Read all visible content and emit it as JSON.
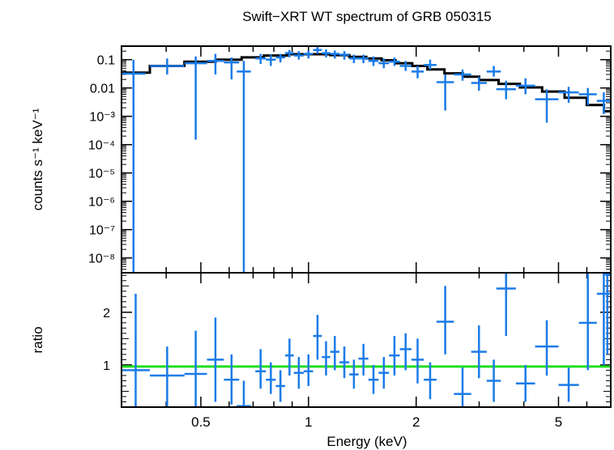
{
  "chart_data": [
    {
      "type": "scatter",
      "title": "Swift−XRT WT spectrum of GRB 050315",
      "xlabel": "Energy (keV)",
      "ylabel": "counts s⁻¹ keV⁻¹",
      "xscale": "log",
      "yscale": "log",
      "xlim": [
        0.3,
        7.0
      ],
      "ylim": [
        3e-09,
        0.3
      ],
      "x_ticks": [
        {
          "value": 0.5,
          "label": "0.5"
        },
        {
          "value": 1,
          "label": "1"
        },
        {
          "value": 2,
          "label": "2"
        },
        {
          "value": 5,
          "label": "5"
        }
      ],
      "y_ticks": [
        {
          "value": 0.1,
          "label": "0.1"
        },
        {
          "value": 0.01,
          "label": "0.01"
        },
        {
          "value": 0.001,
          "label": "10⁻³"
        },
        {
          "value": 0.0001,
          "label": "10⁻⁴"
        },
        {
          "value": 1e-05,
          "label": "10⁻⁵"
        },
        {
          "value": 1e-06,
          "label": "10⁻⁶"
        },
        {
          "value": 1e-07,
          "label": "10⁻⁷"
        },
        {
          "value": 1e-08,
          "label": "10⁻⁸"
        }
      ],
      "data_color": "#1a7be8",
      "model_color": "#000000",
      "points": [
        {
          "x0": 0.3,
          "x1": 0.35,
          "y": 0.032,
          "ylo": 3e-09,
          "yhi": 0.1
        },
        {
          "x0": 0.36,
          "x1": 0.45,
          "y": 0.06,
          "ylo": 0.03,
          "yhi": 0.11
        },
        {
          "x0": 0.45,
          "x1": 0.52,
          "y": 0.075,
          "ylo": 0.00015,
          "yhi": 0.13
        },
        {
          "x0": 0.52,
          "x1": 0.58,
          "y": 0.09,
          "ylo": 0.03,
          "yhi": 0.16
        },
        {
          "x0": 0.58,
          "x1": 0.64,
          "y": 0.08,
          "ylo": 0.02,
          "yhi": 0.12
        },
        {
          "x0": 0.63,
          "x1": 0.69,
          "y": 0.038,
          "ylo": 3e-09,
          "yhi": 0.09
        },
        {
          "x0": 0.71,
          "x1": 0.76,
          "y": 0.11,
          "ylo": 0.07,
          "yhi": 0.16
        },
        {
          "x0": 0.76,
          "x1": 0.81,
          "y": 0.1,
          "ylo": 0.06,
          "yhi": 0.15
        },
        {
          "x0": 0.81,
          "x1": 0.86,
          "y": 0.12,
          "ylo": 0.08,
          "yhi": 0.16
        },
        {
          "x0": 0.86,
          "x1": 0.91,
          "y": 0.17,
          "ylo": 0.12,
          "yhi": 0.22
        },
        {
          "x0": 0.91,
          "x1": 0.97,
          "y": 0.14,
          "ylo": 0.1,
          "yhi": 0.2
        },
        {
          "x0": 0.97,
          "x1": 1.03,
          "y": 0.16,
          "ylo": 0.11,
          "yhi": 0.21
        },
        {
          "x0": 1.03,
          "x1": 1.09,
          "y": 0.22,
          "ylo": 0.16,
          "yhi": 0.28
        },
        {
          "x0": 1.09,
          "x1": 1.15,
          "y": 0.17,
          "ylo": 0.12,
          "yhi": 0.23
        },
        {
          "x0": 1.15,
          "x1": 1.22,
          "y": 0.16,
          "ylo": 0.11,
          "yhi": 0.21
        },
        {
          "x0": 1.22,
          "x1": 1.3,
          "y": 0.15,
          "ylo": 0.1,
          "yhi": 0.2
        },
        {
          "x0": 1.3,
          "x1": 1.38,
          "y": 0.11,
          "ylo": 0.075,
          "yhi": 0.15
        },
        {
          "x0": 1.38,
          "x1": 1.47,
          "y": 0.11,
          "ylo": 0.075,
          "yhi": 0.15
        },
        {
          "x0": 1.47,
          "x1": 1.57,
          "y": 0.09,
          "ylo": 0.06,
          "yhi": 0.13
        },
        {
          "x0": 1.57,
          "x1": 1.68,
          "y": 0.075,
          "ylo": 0.05,
          "yhi": 0.11
        },
        {
          "x0": 1.68,
          "x1": 1.8,
          "y": 0.085,
          "ylo": 0.06,
          "yhi": 0.12
        },
        {
          "x0": 1.8,
          "x1": 1.94,
          "y": 0.06,
          "ylo": 0.04,
          "yhi": 0.09
        },
        {
          "x0": 1.94,
          "x1": 2.1,
          "y": 0.038,
          "ylo": 0.022,
          "yhi": 0.06
        },
        {
          "x0": 2.1,
          "x1": 2.28,
          "y": 0.065,
          "ylo": 0.045,
          "yhi": 0.1
        },
        {
          "x0": 2.28,
          "x1": 2.55,
          "y": 0.016,
          "ylo": 0.0016,
          "yhi": 0.03
        },
        {
          "x0": 2.55,
          "x1": 2.85,
          "y": 0.03,
          "ylo": 0.018,
          "yhi": 0.045
        },
        {
          "x0": 2.85,
          "x1": 3.15,
          "y": 0.015,
          "ylo": 0.008,
          "yhi": 0.025
        },
        {
          "x0": 3.15,
          "x1": 3.45,
          "y": 0.038,
          "ylo": 0.025,
          "yhi": 0.06
        },
        {
          "x0": 3.35,
          "x1": 3.8,
          "y": 0.009,
          "ylo": 0.004,
          "yhi": 0.018
        },
        {
          "x0": 3.8,
          "x1": 4.3,
          "y": 0.012,
          "ylo": 0.006,
          "yhi": 0.022
        },
        {
          "x0": 4.3,
          "x1": 5.0,
          "y": 0.004,
          "ylo": 0.0006,
          "yhi": 0.009
        },
        {
          "x0": 5.0,
          "x1": 5.7,
          "y": 0.007,
          "ylo": 0.003,
          "yhi": 0.011
        },
        {
          "x0": 5.7,
          "x1": 6.4,
          "y": 0.006,
          "ylo": 0.0025,
          "yhi": 0.01
        },
        {
          "x0": 6.4,
          "x1": 7.0,
          "y": 0.0035,
          "ylo": 0.0012,
          "yhi": 0.007
        }
      ],
      "model": [
        {
          "x0": 0.3,
          "x1": 0.36,
          "y": 0.035
        },
        {
          "x0": 0.36,
          "x1": 0.45,
          "y": 0.06
        },
        {
          "x0": 0.45,
          "x1": 0.55,
          "y": 0.085
        },
        {
          "x0": 0.55,
          "x1": 0.65,
          "y": 0.1
        },
        {
          "x0": 0.65,
          "x1": 0.75,
          "y": 0.12
        },
        {
          "x0": 0.75,
          "x1": 0.87,
          "y": 0.14
        },
        {
          "x0": 0.87,
          "x1": 1.0,
          "y": 0.155
        },
        {
          "x0": 1.0,
          "x1": 1.15,
          "y": 0.155
        },
        {
          "x0": 1.15,
          "x1": 1.3,
          "y": 0.145
        },
        {
          "x0": 1.3,
          "x1": 1.45,
          "y": 0.125
        },
        {
          "x0": 1.45,
          "x1": 1.6,
          "y": 0.11
        },
        {
          "x0": 1.6,
          "x1": 1.75,
          "y": 0.095
        },
        {
          "x0": 1.75,
          "x1": 1.95,
          "y": 0.075
        },
        {
          "x0": 1.95,
          "x1": 2.15,
          "y": 0.06
        },
        {
          "x0": 2.15,
          "x1": 2.4,
          "y": 0.045
        },
        {
          "x0": 2.4,
          "x1": 2.7,
          "y": 0.033
        },
        {
          "x0": 2.7,
          "x1": 3.0,
          "y": 0.025
        },
        {
          "x0": 3.0,
          "x1": 3.4,
          "y": 0.019
        },
        {
          "x0": 3.4,
          "x1": 3.9,
          "y": 0.014
        },
        {
          "x0": 3.9,
          "x1": 4.5,
          "y": 0.0105
        },
        {
          "x0": 4.5,
          "x1": 5.2,
          "y": 0.0075
        },
        {
          "x0": 5.2,
          "x1": 6.0,
          "y": 0.0045
        },
        {
          "x0": 6.0,
          "x1": 6.7,
          "y": 0.0025
        },
        {
          "x0": 6.7,
          "x1": 7.0,
          "y": 0.0015
        }
      ]
    },
    {
      "type": "scatter",
      "xlabel": "Energy (keV)",
      "ylabel": "ratio",
      "xscale": "log",
      "yscale": "linear",
      "xlim": [
        0.3,
        7.0
      ],
      "ylim": [
        0.2,
        2.75
      ],
      "x_ticks": [
        {
          "value": 0.5,
          "label": "0.5"
        },
        {
          "value": 1,
          "label": "1"
        },
        {
          "value": 2,
          "label": "2"
        },
        {
          "value": 5,
          "label": "5"
        }
      ],
      "y_ticks": [
        {
          "value": 1,
          "label": "1"
        },
        {
          "value": 2,
          "label": "2"
        }
      ],
      "reference_line": {
        "y": 0.97,
        "color": "#22dd22"
      },
      "data_color": "#1a7be8",
      "points": [
        {
          "x0": 0.3,
          "x1": 0.36,
          "y": 0.9,
          "ylo": 0.2,
          "yhi": 2.35
        },
        {
          "x0": 0.36,
          "x1": 0.45,
          "y": 0.8,
          "ylo": 0.2,
          "yhi": 1.35
        },
        {
          "x0": 0.45,
          "x1": 0.52,
          "y": 0.83,
          "ylo": 0.2,
          "yhi": 1.65
        },
        {
          "x0": 0.52,
          "x1": 0.58,
          "y": 1.1,
          "ylo": 0.3,
          "yhi": 1.9
        },
        {
          "x0": 0.58,
          "x1": 0.64,
          "y": 0.72,
          "ylo": 0.25,
          "yhi": 1.2
        },
        {
          "x0": 0.63,
          "x1": 0.69,
          "y": 0.22,
          "ylo": 0.2,
          "yhi": 0.7
        },
        {
          "x0": 0.71,
          "x1": 0.76,
          "y": 0.88,
          "ylo": 0.55,
          "yhi": 1.3
        },
        {
          "x0": 0.76,
          "x1": 0.81,
          "y": 0.72,
          "ylo": 0.45,
          "yhi": 1.05
        },
        {
          "x0": 0.81,
          "x1": 0.86,
          "y": 0.6,
          "ylo": 0.3,
          "yhi": 0.9
        },
        {
          "x0": 0.86,
          "x1": 0.91,
          "y": 1.18,
          "ylo": 0.8,
          "yhi": 1.5
        },
        {
          "x0": 0.91,
          "x1": 0.97,
          "y": 0.85,
          "ylo": 0.55,
          "yhi": 1.15
        },
        {
          "x0": 0.97,
          "x1": 1.03,
          "y": 0.88,
          "ylo": 0.6,
          "yhi": 1.2
        },
        {
          "x0": 1.03,
          "x1": 1.09,
          "y": 1.55,
          "ylo": 1.1,
          "yhi": 1.95
        },
        {
          "x0": 1.09,
          "x1": 1.15,
          "y": 1.15,
          "ylo": 0.8,
          "yhi": 1.45
        },
        {
          "x0": 1.15,
          "x1": 1.22,
          "y": 1.25,
          "ylo": 0.9,
          "yhi": 1.55
        },
        {
          "x0": 1.22,
          "x1": 1.3,
          "y": 1.05,
          "ylo": 0.75,
          "yhi": 1.35
        },
        {
          "x0": 1.3,
          "x1": 1.38,
          "y": 0.82,
          "ylo": 0.55,
          "yhi": 1.1
        },
        {
          "x0": 1.38,
          "x1": 1.47,
          "y": 1.12,
          "ylo": 0.8,
          "yhi": 1.4
        },
        {
          "x0": 1.47,
          "x1": 1.57,
          "y": 0.72,
          "ylo": 0.45,
          "yhi": 1.0
        },
        {
          "x0": 1.57,
          "x1": 1.68,
          "y": 0.85,
          "ylo": 0.55,
          "yhi": 1.15
        },
        {
          "x0": 1.68,
          "x1": 1.8,
          "y": 1.18,
          "ylo": 0.8,
          "yhi": 1.55
        },
        {
          "x0": 1.8,
          "x1": 1.94,
          "y": 1.3,
          "ylo": 0.9,
          "yhi": 1.6
        },
        {
          "x0": 1.94,
          "x1": 2.1,
          "y": 1.1,
          "ylo": 0.65,
          "yhi": 1.5
        },
        {
          "x0": 2.1,
          "x1": 2.28,
          "y": 0.72,
          "ylo": 0.35,
          "yhi": 1.05
        },
        {
          "x0": 2.28,
          "x1": 2.55,
          "y": 1.82,
          "ylo": 1.2,
          "yhi": 2.5
        },
        {
          "x0": 2.55,
          "x1": 2.85,
          "y": 0.45,
          "ylo": 0.2,
          "yhi": 0.95
        },
        {
          "x0": 2.85,
          "x1": 3.15,
          "y": 1.25,
          "ylo": 0.75,
          "yhi": 1.75
        },
        {
          "x0": 3.15,
          "x1": 3.45,
          "y": 0.7,
          "ylo": 0.3,
          "yhi": 1.1
        },
        {
          "x0": 3.35,
          "x1": 3.8,
          "y": 2.45,
          "ylo": 1.55,
          "yhi": 2.75
        },
        {
          "x0": 3.8,
          "x1": 4.3,
          "y": 0.65,
          "ylo": 0.3,
          "yhi": 1.0
        },
        {
          "x0": 4.3,
          "x1": 5.0,
          "y": 1.35,
          "ylo": 0.8,
          "yhi": 1.85
        },
        {
          "x0": 5.0,
          "x1": 5.7,
          "y": 0.62,
          "ylo": 0.3,
          "yhi": 0.95
        },
        {
          "x0": 5.7,
          "x1": 6.4,
          "y": 1.8,
          "ylo": 0.9,
          "yhi": 2.75
        },
        {
          "x0": 6.4,
          "x1": 7.0,
          "y": 2.35,
          "ylo": 1.0,
          "yhi": 2.75
        },
        {
          "x0": 6.7,
          "x1": 7.0,
          "y": 2.72,
          "ylo": 1.2,
          "yhi": 2.75
        }
      ]
    }
  ]
}
